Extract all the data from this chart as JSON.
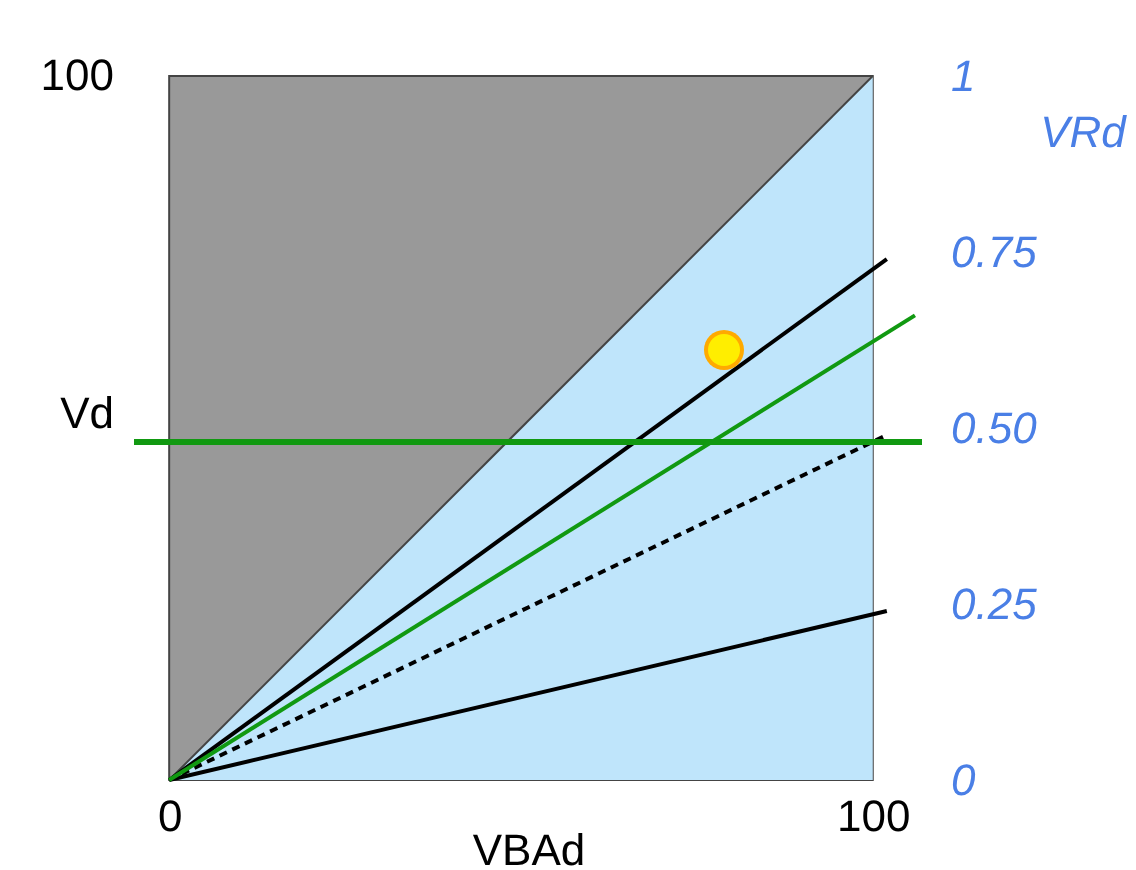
{
  "chart_data": {
    "type": "line",
    "xlabel": "VBAd",
    "ylabel": "VRd",
    "xlim": [
      -5,
      107
    ],
    "ylim": [
      0,
      1
    ],
    "xticks": [
      0,
      100
    ],
    "yticks": [
      0,
      0.25,
      {
        "value": 0.5,
        "label": "0.50"
      },
      0.75,
      1
    ],
    "grid": false,
    "annotations": [
      "100"
    ],
    "ref_lines": [
      {
        "axis": "y",
        "value": 0.48,
        "label": "Vd",
        "color": "#119911"
      }
    ],
    "series": [
      {
        "type": "area",
        "color": "#bfe5fb",
        "x": [
          0,
          100
        ],
        "values": [
          0,
          1
        ]
      },
      {
        "color": "#000000",
        "x": [
          0,
          102
        ],
        "values": [
          0,
          0.74
        ]
      },
      {
        "color": "#000000",
        "x": [
          0,
          102
        ],
        "values": [
          0,
          0.49
        ],
        "line_style": "dashed"
      },
      {
        "color": "#000000",
        "x": [
          0,
          102
        ],
        "values": [
          0,
          0.24
        ]
      },
      {
        "color": "#119911",
        "x": [
          0,
          106
        ],
        "values": [
          0,
          0.66
        ]
      }
    ]
  }
}
